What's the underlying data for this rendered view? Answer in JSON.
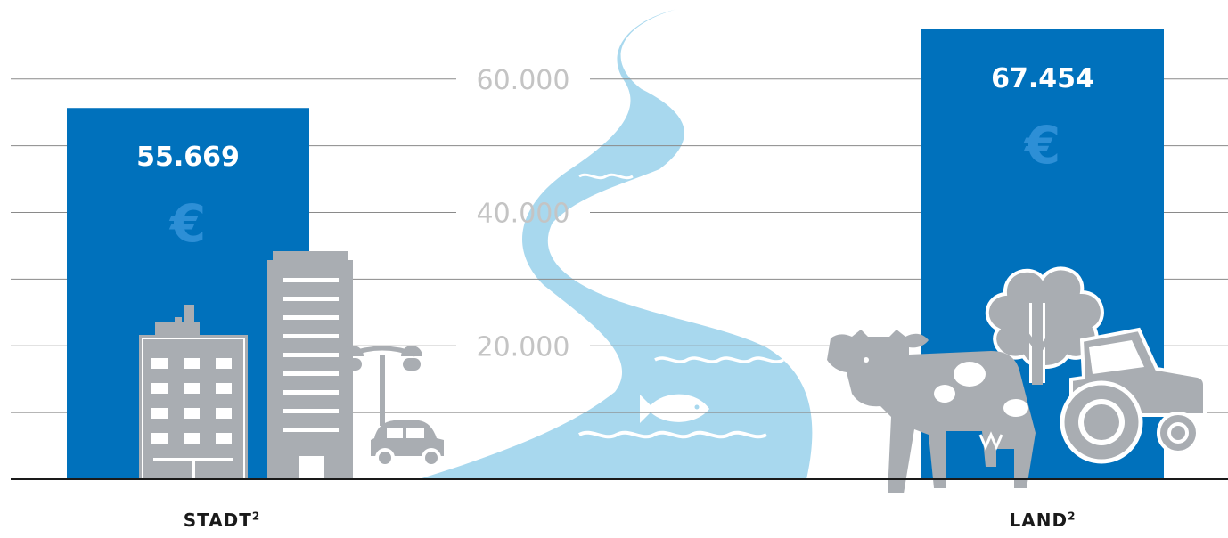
{
  "chart_data": {
    "type": "bar",
    "categories": [
      "STADT",
      "LAND"
    ],
    "category_superscripts": [
      "2",
      "2"
    ],
    "values": [
      55669,
      67454
    ],
    "value_labels": [
      "55.669",
      "67.454"
    ],
    "currency_symbol": "€",
    "y_ticks": [
      20000,
      40000,
      60000
    ],
    "y_tick_labels": [
      "20.000",
      "40.000",
      "60.000"
    ],
    "ylim": [
      0,
      67454
    ],
    "grid": true,
    "colors": {
      "bar": "#0071bc",
      "bar_label": "#ffffff",
      "euro": "#2d8fd6",
      "grid": "#8a8a8a",
      "tick_label": "#c4c4c4",
      "river": "#a8d8ee",
      "illustration": "#a9adb2",
      "baseline": "#1a1a1a"
    },
    "icons": [
      "building-icon",
      "skyscraper-icon",
      "street-lamp-icon",
      "car-icon",
      "river-icon",
      "fish-icon",
      "cow-icon",
      "tree-icon",
      "tractor-icon"
    ]
  }
}
